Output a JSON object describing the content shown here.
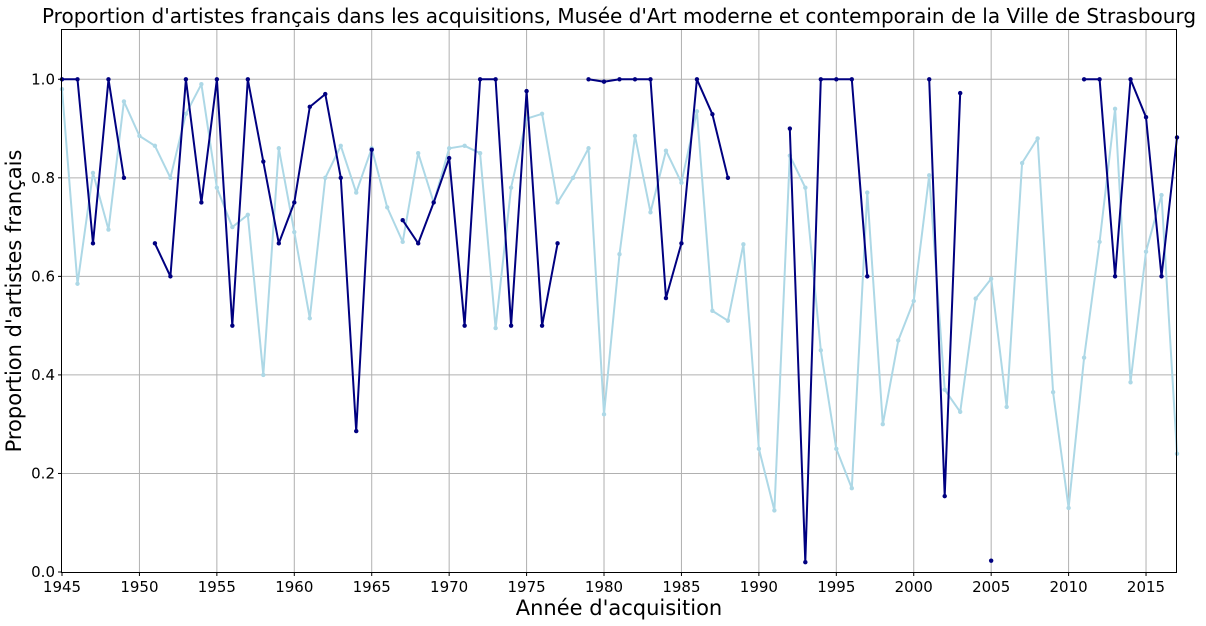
{
  "chart_data": {
    "type": "line",
    "title": "Proportion d'artistes français dans les acquisitions, Musée d'Art moderne et contemporain de la Ville de Strasbourg",
    "xlabel": "Année d'acquisition",
    "ylabel": "Proportion d'artistes français",
    "xlim": [
      1945,
      2017
    ],
    "ylim": [
      0.0,
      1.1
    ],
    "xticks": [
      1945,
      1950,
      1955,
      1960,
      1965,
      1970,
      1975,
      1980,
      1985,
      1990,
      1995,
      2000,
      2005,
      2010,
      2015
    ],
    "yticks": [
      "0.0",
      "0.2",
      "0.4",
      "0.6",
      "0.8",
      "1.0"
    ],
    "grid": true,
    "series": [
      {
        "name": "light",
        "color": "#add8e6",
        "x": [
          1945,
          1946,
          1947,
          1948,
          1949,
          1950,
          1951,
          1952,
          1953,
          1954,
          1955,
          1956,
          1957,
          1958,
          1959,
          1960,
          1961,
          1962,
          1963,
          1964,
          1965,
          1966,
          1967,
          1968,
          1969,
          1970,
          1971,
          1972,
          1973,
          1974,
          1975,
          1976,
          1977,
          1978,
          1979,
          1980,
          1981,
          1982,
          1983,
          1984,
          1985,
          1986,
          1987,
          1988,
          1989,
          1990,
          1991,
          1992,
          1993,
          1994,
          1995,
          1996,
          1997,
          1998,
          1999,
          2000,
          2001,
          2002,
          2003,
          2004,
          2005,
          2006,
          2007,
          2008,
          2009,
          2010,
          2011,
          2012,
          2013,
          2014,
          2015,
          2016,
          2017
        ],
        "y": [
          0.98,
          0.585,
          0.81,
          0.695,
          0.955,
          0.885,
          0.865,
          0.8,
          0.93,
          0.99,
          0.78,
          0.7,
          0.725,
          0.4,
          0.86,
          0.69,
          0.515,
          0.8,
          0.865,
          0.77,
          0.86,
          0.74,
          0.67,
          0.85,
          0.75,
          0.86,
          0.865,
          0.85,
          0.495,
          0.78,
          0.92,
          0.93,
          0.75,
          0.8,
          0.86,
          0.32,
          0.645,
          0.885,
          0.73,
          0.855,
          0.79,
          0.935,
          0.53,
          0.51,
          0.665,
          0.25,
          0.125,
          0.845,
          0.78,
          0.45,
          0.25,
          0.17,
          0.77,
          0.3,
          0.47,
          0.55,
          0.805,
          0.37,
          0.325,
          0.555,
          0.595,
          0.335,
          0.83,
          0.88,
          0.365,
          0.13,
          0.435,
          0.67,
          0.94,
          0.385,
          0.65,
          0.765,
          0.24
        ]
      },
      {
        "name": "dark",
        "color": "#000080",
        "x": [
          1945,
          1946,
          1947,
          1948,
          1949,
          1950,
          1951,
          1952,
          1953,
          1954,
          1955,
          1956,
          1957,
          1958,
          1959,
          1960,
          1961,
          1962,
          1963,
          1964,
          1965,
          1966,
          1967,
          1968,
          1969,
          1970,
          1971,
          1972,
          1973,
          1974,
          1975,
          1976,
          1977,
          1978,
          1979,
          1980,
          1981,
          1982,
          1983,
          1984,
          1985,
          1986,
          1987,
          1988,
          1989,
          1990,
          1991,
          1992,
          1993,
          1994,
          1995,
          1996,
          1997,
          1998,
          1999,
          2000,
          2001,
          2002,
          2003,
          2004,
          2005,
          2006,
          2007,
          2008,
          2009,
          2010,
          2011,
          2012,
          2013,
          2014,
          2015,
          2016,
          2017
        ],
        "y": [
          1.0,
          1.0,
          0.667,
          1.0,
          0.8,
          null,
          0.667,
          0.6,
          1.0,
          0.75,
          1.0,
          0.5,
          1.0,
          0.833,
          0.667,
          0.75,
          0.944,
          0.97,
          0.8,
          0.286,
          0.857,
          null,
          0.714,
          0.667,
          0.75,
          0.84,
          0.5,
          1.0,
          1.0,
          0.5,
          0.976,
          0.5,
          0.667,
          null,
          1.0,
          0.995,
          1.0,
          1.0,
          1.0,
          0.556,
          0.667,
          1.0,
          0.929,
          0.8,
          null,
          null,
          null,
          0.9,
          0.02,
          1.0,
          1.0,
          1.0,
          0.6,
          null,
          null,
          null,
          1.0,
          0.154,
          0.972,
          null,
          0.023,
          null,
          null,
          null,
          null,
          null,
          1.0,
          1.0,
          0.6,
          1.0,
          0.923,
          0.6,
          0.882
        ]
      }
    ]
  }
}
